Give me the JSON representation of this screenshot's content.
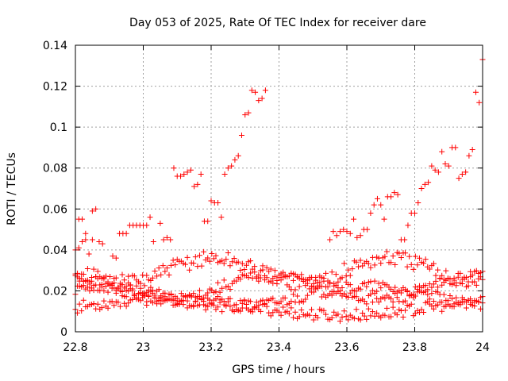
{
  "chart_data": {
    "type": "scatter",
    "title": "Day 053 of 2025, Rate Of TEC Index for receiver dare",
    "xlabel": "GPS time / hours",
    "ylabel": "ROTI / TECUs",
    "xlim": [
      22.8,
      24
    ],
    "ylim": [
      0,
      0.14
    ],
    "xticks": [
      "22.8",
      "23",
      "23.2",
      "23.4",
      "23.6",
      "23.8",
      "24"
    ],
    "yticks": [
      "0",
      "0.02",
      "0.04",
      "0.06",
      "0.08",
      "0.1",
      "0.12",
      "0.14"
    ],
    "grid": true,
    "marker": "+",
    "color": "#ff0000",
    "series": [
      {
        "points": [
          [
            22.8,
            0.04
          ],
          [
            22.81,
            0.041
          ],
          [
            22.81,
            0.055
          ],
          [
            22.82,
            0.055
          ],
          [
            22.82,
            0.044
          ],
          [
            22.83,
            0.048
          ],
          [
            22.83,
            0.045
          ],
          [
            22.84,
            0.038
          ],
          [
            22.85,
            0.045
          ],
          [
            22.85,
            0.059
          ],
          [
            22.86,
            0.06
          ],
          [
            22.87,
            0.044
          ],
          [
            22.88,
            0.043
          ],
          [
            22.91,
            0.037
          ],
          [
            22.92,
            0.036
          ],
          [
            22.93,
            0.048
          ],
          [
            22.94,
            0.048
          ],
          [
            22.95,
            0.048
          ],
          [
            22.96,
            0.052
          ],
          [
            22.97,
            0.052
          ],
          [
            22.98,
            0.052
          ],
          [
            22.99,
            0.052
          ],
          [
            23.0,
            0.052
          ],
          [
            23.01,
            0.052
          ],
          [
            23.02,
            0.056
          ],
          [
            23.03,
            0.044
          ],
          [
            23.05,
            0.053
          ],
          [
            23.06,
            0.045
          ],
          [
            23.07,
            0.046
          ],
          [
            23.08,
            0.045
          ],
          [
            23.09,
            0.08
          ],
          [
            23.1,
            0.076
          ],
          [
            23.11,
            0.076
          ],
          [
            23.12,
            0.077
          ],
          [
            23.13,
            0.078
          ],
          [
            23.14,
            0.079
          ],
          [
            23.15,
            0.071
          ],
          [
            23.16,
            0.072
          ],
          [
            23.17,
            0.077
          ],
          [
            23.18,
            0.054
          ],
          [
            23.19,
            0.054
          ],
          [
            23.2,
            0.064
          ],
          [
            23.21,
            0.063
          ],
          [
            23.22,
            0.063
          ],
          [
            23.23,
            0.056
          ],
          [
            23.24,
            0.077
          ],
          [
            23.25,
            0.08
          ],
          [
            23.26,
            0.081
          ],
          [
            23.27,
            0.084
          ],
          [
            23.28,
            0.086
          ],
          [
            23.29,
            0.096
          ],
          [
            23.3,
            0.106
          ],
          [
            23.31,
            0.107
          ],
          [
            23.32,
            0.118
          ],
          [
            23.33,
            0.117
          ],
          [
            23.34,
            0.113
          ],
          [
            23.35,
            0.114
          ],
          [
            23.36,
            0.118
          ],
          [
            23.55,
            0.045
          ],
          [
            23.56,
            0.049
          ],
          [
            23.57,
            0.047
          ],
          [
            23.58,
            0.049
          ],
          [
            23.59,
            0.05
          ],
          [
            23.6,
            0.049
          ],
          [
            23.61,
            0.048
          ],
          [
            23.62,
            0.055
          ],
          [
            23.63,
            0.046
          ],
          [
            23.64,
            0.047
          ],
          [
            23.65,
            0.05
          ],
          [
            23.66,
            0.05
          ],
          [
            23.67,
            0.058
          ],
          [
            23.68,
            0.062
          ],
          [
            23.69,
            0.065
          ],
          [
            23.7,
            0.062
          ],
          [
            23.71,
            0.055
          ],
          [
            23.72,
            0.066
          ],
          [
            23.73,
            0.066
          ],
          [
            23.74,
            0.068
          ],
          [
            23.75,
            0.067
          ],
          [
            23.76,
            0.045
          ],
          [
            23.77,
            0.045
          ],
          [
            23.78,
            0.052
          ],
          [
            23.79,
            0.058
          ],
          [
            23.8,
            0.058
          ],
          [
            23.81,
            0.063
          ],
          [
            23.82,
            0.07
          ],
          [
            23.83,
            0.072
          ],
          [
            23.84,
            0.073
          ],
          [
            23.85,
            0.081
          ],
          [
            23.86,
            0.079
          ],
          [
            23.87,
            0.078
          ],
          [
            23.88,
            0.088
          ],
          [
            23.89,
            0.082
          ],
          [
            23.9,
            0.081
          ],
          [
            23.91,
            0.09
          ],
          [
            23.92,
            0.09
          ],
          [
            23.93,
            0.075
          ],
          [
            23.94,
            0.077
          ],
          [
            23.95,
            0.078
          ],
          [
            23.96,
            0.086
          ],
          [
            23.97,
            0.089
          ],
          [
            23.98,
            0.117
          ],
          [
            23.99,
            0.112
          ],
          [
            24.0,
            0.133
          ]
        ]
      }
    ],
    "bands": [
      {
        "center": 0.012,
        "amplitude": 0.004,
        "noise": 0.003
      },
      {
        "center": 0.017,
        "amplitude": 0.005,
        "noise": 0.003
      },
      {
        "center": 0.022,
        "amplitude": 0.006,
        "noise": 0.003
      },
      {
        "center": 0.03,
        "amplitude": 0.006,
        "noise": 0.004
      }
    ]
  }
}
